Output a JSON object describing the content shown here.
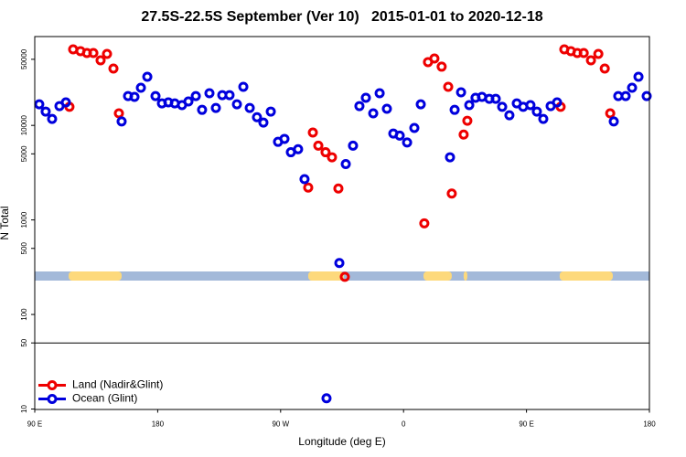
{
  "chart_data": {
    "type": "scatter",
    "title": "27.5S-22.5S September (Ver 10)   2015-01-01 to 2020-12-18",
    "xlabel": "Longitude (deg E)",
    "ylabel": "N Total",
    "log_y": true,
    "xlim": [
      90,
      540
    ],
    "ylim": [
      10,
      87000
    ],
    "xticks": [
      {
        "value": 90,
        "label": "90 E"
      },
      {
        "value": 180,
        "label": "180"
      },
      {
        "value": 270,
        "label": "90 W"
      },
      {
        "value": 360,
        "label": "0"
      },
      {
        "value": 450,
        "label": "90 E"
      },
      {
        "value": 540,
        "label": "180"
      }
    ],
    "yticks": [
      10,
      50,
      100,
      500,
      1000,
      5000,
      10000,
      50000
    ],
    "hline": 50,
    "legend": "bottom-left",
    "surface_band": {
      "ocean_color": "#a3b9d9",
      "land_color": "#fdd97c",
      "land": [
        [
          114.8,
          153.6
        ],
        [
          290.2,
          316.3
        ],
        [
          374.6,
          395.3
        ],
        [
          404.0,
          406.7
        ],
        [
          474.3,
          513.2
        ]
      ]
    },
    "series": [
      {
        "name": "Land (Nadir&Glint)",
        "color": "#ee0000",
        "x": [
          115.4,
          118.1,
          123.5,
          128.2,
          132.9,
          138.2,
          142.9,
          147.6,
          151.6,
          290.2,
          293.6,
          297.6,
          302.9,
          307.6,
          312.3,
          317.0,
          375.2,
          377.9,
          382.6,
          387.9,
          392.7,
          395.3,
          404.0,
          406.7,
          475.0,
          477.7,
          482.5,
          487.2,
          491.9,
          497.2,
          502.6,
          507.3,
          511.3
        ],
        "values": [
          15700,
          63700,
          61000,
          58300,
          58300,
          48800,
          57000,
          39900,
          13400,
          2200,
          8400,
          6100,
          5200,
          4600,
          2150,
          250,
          920,
          46700,
          51000,
          41800,
          25600,
          1900,
          8000,
          11200,
          15700,
          63700,
          61000,
          58300,
          58300,
          48800,
          57000,
          39900,
          13400
        ]
      },
      {
        "name": "Ocean (Glint)",
        "color": "#0000dd",
        "x": [
          93.3,
          98.0,
          102.7,
          108.1,
          112.8,
          153.6,
          158.3,
          163.0,
          167.7,
          172.4,
          178.4,
          183.1,
          187.8,
          192.5,
          197.8,
          202.5,
          207.9,
          212.5,
          217.9,
          222.6,
          227.3,
          232.6,
          238.0,
          242.7,
          247.4,
          252.7,
          257.4,
          262.8,
          268.1,
          272.8,
          277.5,
          282.8,
          287.5,
          303.6,
          313.0,
          317.7,
          323.0,
          327.7,
          332.4,
          337.8,
          342.5,
          347.8,
          352.5,
          357.2,
          362.6,
          367.9,
          372.6,
          394.0,
          397.4,
          402.1,
          408.1,
          412.7,
          417.4,
          422.8,
          427.5,
          432.2,
          437.5,
          442.9,
          447.6,
          452.9,
          457.6,
          462.3,
          467.7,
          472.4,
          513.9,
          517.2,
          522.6,
          527.3,
          532.0,
          538.0
        ],
        "values": [
          16700,
          14000,
          11700,
          16000,
          17500,
          11000,
          20400,
          20000,
          25000,
          32700,
          20400,
          17100,
          17500,
          17100,
          16400,
          17900,
          20400,
          14600,
          21900,
          15300,
          20900,
          20900,
          16700,
          25600,
          15300,
          12200,
          10700,
          14000,
          6700,
          7200,
          5200,
          5600,
          2700,
          13,
          350,
          3900,
          6100,
          16000,
          19600,
          13400,
          21900,
          15000,
          8200,
          7800,
          6600,
          9400,
          16700,
          4600,
          14600,
          22400,
          16400,
          19600,
          20000,
          19100,
          19100,
          15700,
          12800,
          17100,
          15700,
          16400,
          14000,
          11700,
          16000,
          17500,
          11000,
          20400,
          20400,
          25000,
          32700,
          20400
        ]
      }
    ]
  }
}
